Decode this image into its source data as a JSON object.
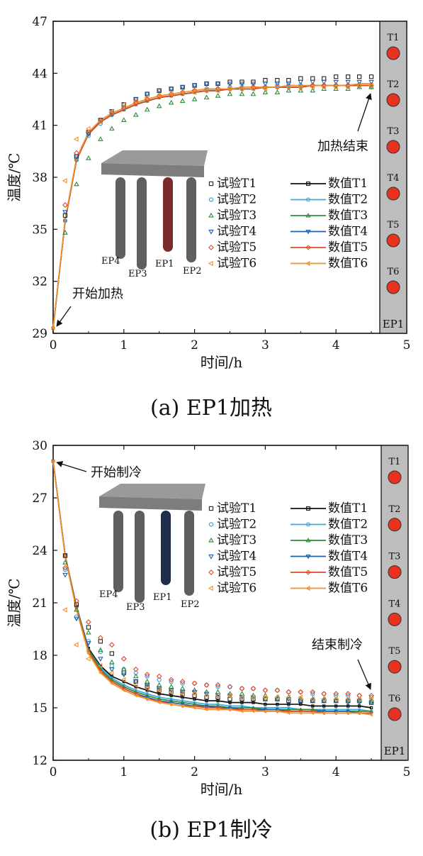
{
  "chart_data": [
    {
      "type": "line",
      "caption": "(a) EP1加热",
      "xlabel": "时间/h",
      "ylabel": "温度/℃",
      "xlim": [
        0,
        5
      ],
      "ylim": [
        29,
        47
      ],
      "xticks": [
        "0",
        "1",
        "2",
        "3",
        "4",
        "5"
      ],
      "yticks": [
        "29",
        "32",
        "35",
        "38",
        "41",
        "44",
        "47"
      ],
      "legend_position": "center-right",
      "annotations": {
        "start": "开始加热",
        "end": "加热结束"
      },
      "column_labels": [
        "EP4",
        "EP3",
        "EP1",
        "EP2"
      ],
      "highlight_column": "EP1",
      "highlight_color": "#7a2b2b",
      "sensor_panel": {
        "label": "EP1",
        "sensors": [
          "T1",
          "T2",
          "T3",
          "T4",
          "T5",
          "T6"
        ]
      },
      "x": [
        0,
        0.17,
        0.33,
        0.5,
        0.67,
        0.83,
        1.0,
        1.17,
        1.33,
        1.5,
        1.67,
        1.83,
        2.0,
        2.17,
        2.33,
        2.5,
        2.67,
        2.83,
        3.0,
        3.17,
        3.33,
        3.5,
        3.67,
        3.83,
        4.0,
        4.17,
        4.33,
        4.5
      ],
      "series": [
        {
          "name": "试验T1",
          "kind": "test",
          "marker": "square",
          "color": "#222222",
          "values": [
            29.3,
            35.8,
            39.2,
            40.6,
            41.3,
            41.8,
            42.2,
            42.5,
            42.8,
            43.0,
            43.1,
            43.2,
            43.3,
            43.4,
            43.4,
            43.5,
            43.5,
            43.5,
            43.6,
            43.6,
            43.6,
            43.7,
            43.7,
            43.7,
            43.8,
            43.8,
            43.8,
            43.8
          ]
        },
        {
          "name": "试验T2",
          "kind": "test",
          "marker": "circle",
          "color": "#2aa0d8",
          "values": [
            29.3,
            35.5,
            39.0,
            40.4,
            41.1,
            41.6,
            42.0,
            42.3,
            42.5,
            42.7,
            42.8,
            42.9,
            43.0,
            43.1,
            43.1,
            43.2,
            43.2,
            43.2,
            43.2,
            43.3,
            43.3,
            43.3,
            43.3,
            43.3,
            43.3,
            43.3,
            43.3,
            43.2
          ]
        },
        {
          "name": "试验T3",
          "kind": "test",
          "marker": "triangle-up",
          "color": "#2e8b3a",
          "values": [
            29.3,
            34.8,
            37.6,
            39.1,
            40.2,
            40.8,
            41.3,
            41.6,
            41.9,
            42.1,
            42.3,
            42.4,
            42.5,
            42.6,
            42.7,
            42.8,
            42.8,
            42.8,
            42.9,
            42.9,
            43.0,
            43.0,
            43.0,
            43.1,
            43.1,
            43.1,
            43.2,
            43.2
          ]
        },
        {
          "name": "试验T4",
          "kind": "test",
          "marker": "triangle-down",
          "color": "#1f5fa8",
          "values": [
            29.3,
            36.0,
            39.2,
            40.5,
            41.3,
            41.8,
            42.2,
            42.5,
            42.8,
            43.0,
            43.1,
            43.2,
            43.3,
            43.4,
            43.4,
            43.4,
            43.4,
            43.4,
            43.4,
            43.4,
            43.4,
            43.5,
            43.5,
            43.5,
            43.5,
            43.5,
            43.5,
            43.5
          ]
        },
        {
          "name": "试验T5",
          "kind": "test",
          "marker": "diamond",
          "color": "#e04a25",
          "values": [
            29.3,
            36.4,
            39.4,
            40.6,
            41.3,
            41.7,
            42.0,
            42.3,
            42.5,
            42.7,
            42.8,
            42.9,
            43.0,
            43.0,
            43.1,
            43.1,
            43.1,
            43.2,
            43.2,
            43.2,
            43.2,
            43.2,
            43.3,
            43.3,
            43.3,
            43.3,
            43.3,
            43.3
          ]
        },
        {
          "name": "试验T6",
          "kind": "test",
          "marker": "triangle-left",
          "color": "#f0922e",
          "values": [
            29.3,
            37.8,
            40.2,
            40.8,
            41.2,
            41.8,
            42.2,
            42.4,
            42.6,
            42.7,
            42.8,
            42.9,
            42.9,
            43.0,
            43.0,
            43.1,
            43.1,
            43.1,
            43.1,
            43.2,
            43.2,
            43.2,
            43.2,
            43.2,
            43.2,
            43.2,
            43.3,
            43.3
          ]
        },
        {
          "name": "数值T1",
          "kind": "numeric",
          "marker": "square",
          "color": "#111111",
          "values": [
            29.3,
            35.5,
            39.0,
            40.5,
            41.2,
            41.6,
            41.9,
            42.2,
            42.4,
            42.6,
            42.7,
            42.8,
            42.9,
            43.0,
            43.0,
            43.1,
            43.1,
            43.1,
            43.2,
            43.2,
            43.2,
            43.2,
            43.3,
            43.3,
            43.3,
            43.3,
            43.3,
            43.3
          ]
        },
        {
          "name": "数值T2",
          "kind": "numeric",
          "marker": "circle",
          "color": "#39a9de",
          "values": [
            29.3,
            35.5,
            39.0,
            40.5,
            41.2,
            41.6,
            41.9,
            42.2,
            42.4,
            42.6,
            42.7,
            42.8,
            42.9,
            43.0,
            43.0,
            43.1,
            43.1,
            43.1,
            43.2,
            43.2,
            43.2,
            43.2,
            43.3,
            43.3,
            43.3,
            43.3,
            43.3,
            43.3
          ]
        },
        {
          "name": "数值T3",
          "kind": "numeric",
          "marker": "triangle-up",
          "color": "#2e8b3a",
          "values": [
            29.3,
            35.5,
            39.0,
            40.5,
            41.2,
            41.6,
            41.9,
            42.2,
            42.4,
            42.6,
            42.7,
            42.8,
            42.9,
            43.0,
            43.0,
            43.1,
            43.1,
            43.1,
            43.2,
            43.2,
            43.2,
            43.2,
            43.3,
            43.3,
            43.3,
            43.3,
            43.3,
            43.3
          ]
        },
        {
          "name": "数值T4",
          "kind": "numeric",
          "marker": "triangle-down",
          "color": "#1f5fa8",
          "values": [
            29.3,
            35.5,
            39.0,
            40.5,
            41.2,
            41.6,
            41.9,
            42.2,
            42.4,
            42.6,
            42.7,
            42.8,
            42.9,
            43.0,
            43.0,
            43.1,
            43.1,
            43.1,
            43.2,
            43.2,
            43.2,
            43.2,
            43.3,
            43.3,
            43.3,
            43.3,
            43.3,
            43.3
          ]
        },
        {
          "name": "数值T5",
          "kind": "numeric",
          "marker": "diamond",
          "color": "#e04a25",
          "values": [
            29.3,
            35.5,
            39.0,
            40.5,
            41.2,
            41.6,
            41.9,
            42.2,
            42.4,
            42.6,
            42.7,
            42.8,
            42.9,
            43.0,
            43.0,
            43.1,
            43.1,
            43.1,
            43.2,
            43.2,
            43.2,
            43.2,
            43.3,
            43.3,
            43.3,
            43.3,
            43.3,
            43.3
          ]
        },
        {
          "name": "数值T6",
          "kind": "numeric",
          "marker": "triangle-left",
          "color": "#f0922e",
          "values": [
            29.3,
            35.6,
            39.1,
            40.6,
            41.3,
            41.7,
            42.0,
            42.3,
            42.5,
            42.7,
            42.8,
            42.9,
            43.0,
            43.1,
            43.1,
            43.1,
            43.2,
            43.2,
            43.2,
            43.2,
            43.3,
            43.3,
            43.3,
            43.3,
            43.3,
            43.3,
            43.4,
            43.4
          ]
        }
      ]
    },
    {
      "type": "line",
      "caption": "(b) EP1制冷",
      "xlabel": "时间/h",
      "ylabel": "温度/℃",
      "xlim": [
        0,
        5
      ],
      "ylim": [
        12,
        30
      ],
      "xticks": [
        "0",
        "1",
        "2",
        "3",
        "4",
        "5"
      ],
      "yticks": [
        "12",
        "15",
        "18",
        "21",
        "24",
        "27",
        "30"
      ],
      "legend_position": "top-right",
      "annotations": {
        "start": "开始制冷",
        "end": "结束制冷"
      },
      "column_labels": [
        "EP4",
        "EP3",
        "EP1",
        "EP2"
      ],
      "highlight_column": "EP1",
      "highlight_color": "#1e2d4a",
      "sensor_panel": {
        "label": "EP1",
        "sensors": [
          "T1",
          "T2",
          "T3",
          "T4",
          "T5",
          "T6"
        ]
      },
      "x": [
        0,
        0.17,
        0.33,
        0.5,
        0.67,
        0.83,
        1.0,
        1.17,
        1.33,
        1.5,
        1.67,
        1.83,
        2.0,
        2.17,
        2.33,
        2.5,
        2.67,
        2.83,
        3.0,
        3.17,
        3.33,
        3.5,
        3.67,
        3.83,
        4.0,
        4.17,
        4.33,
        4.5
      ],
      "series": [
        {
          "name": "试验T1",
          "kind": "test",
          "marker": "square",
          "color": "#222222",
          "values": [
            29.1,
            23.7,
            20.9,
            19.6,
            18.8,
            18.1,
            17.0,
            16.5,
            16.2,
            16.0,
            15.9,
            15.8,
            15.7,
            15.6,
            15.6,
            15.5,
            15.5,
            15.5,
            15.5,
            15.5,
            15.4,
            15.4,
            15.4,
            15.4,
            15.4,
            15.4,
            15.4,
            15.3
          ]
        },
        {
          "name": "试验T2",
          "kind": "test",
          "marker": "circle",
          "color": "#2aa0d8",
          "values": [
            29.1,
            22.9,
            20.2,
            18.8,
            18.2,
            17.4,
            17.2,
            17.0,
            16.8,
            16.6,
            16.5,
            16.4,
            16.4,
            16.3,
            16.2,
            16.2,
            16.1,
            16.1,
            16.0,
            16.0,
            15.9,
            15.9,
            15.8,
            15.8,
            15.7,
            15.7,
            15.7,
            15.6
          ]
        },
        {
          "name": "试验T3",
          "kind": "test",
          "marker": "triangle-up",
          "color": "#2e8b3a",
          "values": [
            29.1,
            23.3,
            20.6,
            19.3,
            18.3,
            17.6,
            17.2,
            16.8,
            16.5,
            16.3,
            16.2,
            16.1,
            16.0,
            15.9,
            15.9,
            15.8,
            15.8,
            15.7,
            15.7,
            15.6,
            15.6,
            15.5,
            15.5,
            15.5,
            15.4,
            15.4,
            15.4,
            15.4
          ]
        },
        {
          "name": "试验T4",
          "kind": "test",
          "marker": "triangle-down",
          "color": "#1f5fa8",
          "values": [
            29.1,
            22.6,
            20.1,
            18.7,
            17.8,
            17.2,
            16.9,
            16.5,
            16.3,
            16.1,
            16.0,
            15.9,
            15.9,
            15.8,
            15.7,
            15.7,
            15.6,
            15.6,
            15.5,
            15.5,
            15.5,
            15.4,
            15.4,
            15.4,
            15.4,
            15.3,
            15.3,
            15.3
          ]
        },
        {
          "name": "试验T5",
          "kind": "test",
          "marker": "diamond",
          "color": "#e04a25",
          "values": [
            29.1,
            23.0,
            21.1,
            19.9,
            19.0,
            18.6,
            17.8,
            17.2,
            16.9,
            16.8,
            16.6,
            16.5,
            16.4,
            16.3,
            16.3,
            16.2,
            16.1,
            16.1,
            16.0,
            16.0,
            15.9,
            15.9,
            15.9,
            15.8,
            15.8,
            15.8,
            15.7,
            15.7
          ]
        },
        {
          "name": "试验T6",
          "kind": "test",
          "marker": "triangle-left",
          "color": "#f0922e",
          "values": [
            29.1,
            20.6,
            18.6,
            17.8,
            17.4,
            17.0,
            16.6,
            16.3,
            16.1,
            16.0,
            15.9,
            15.8,
            15.8,
            15.7,
            15.7,
            15.7,
            15.6,
            15.6,
            15.6,
            15.6,
            15.6,
            15.6,
            15.5,
            15.5,
            15.5,
            15.5,
            15.5,
            15.5
          ]
        },
        {
          "name": "数值T1",
          "kind": "numeric",
          "marker": "square",
          "color": "#111111",
          "values": [
            29.1,
            23.7,
            20.8,
            18.4,
            17.4,
            16.8,
            16.5,
            16.2,
            16.0,
            15.8,
            15.7,
            15.6,
            15.5,
            15.4,
            15.4,
            15.3,
            15.3,
            15.3,
            15.2,
            15.2,
            15.2,
            15.2,
            15.1,
            15.1,
            15.1,
            15.1,
            15.1,
            15.0
          ]
        },
        {
          "name": "数值T2",
          "kind": "numeric",
          "marker": "circle",
          "color": "#39a9de",
          "values": [
            29.1,
            23.7,
            20.8,
            18.3,
            17.3,
            16.7,
            16.3,
            16.0,
            15.8,
            15.6,
            15.5,
            15.4,
            15.3,
            15.2,
            15.2,
            15.1,
            15.1,
            15.0,
            15.0,
            15.0,
            15.0,
            14.9,
            14.9,
            14.9,
            14.9,
            14.9,
            14.9,
            14.8
          ]
        },
        {
          "name": "数值T3",
          "kind": "numeric",
          "marker": "triangle-up",
          "color": "#2e8b3a",
          "values": [
            29.1,
            23.7,
            20.8,
            18.3,
            17.2,
            16.6,
            16.2,
            15.9,
            15.7,
            15.5,
            15.4,
            15.3,
            15.2,
            15.1,
            15.1,
            15.0,
            15.0,
            15.0,
            14.9,
            14.9,
            14.9,
            14.9,
            14.9,
            14.8,
            14.8,
            14.8,
            14.8,
            14.8
          ]
        },
        {
          "name": "数值T4",
          "kind": "numeric",
          "marker": "triangle-down",
          "color": "#1f5fa8",
          "values": [
            29.1,
            23.7,
            20.7,
            18.2,
            17.1,
            16.5,
            16.1,
            15.8,
            15.6,
            15.4,
            15.3,
            15.2,
            15.1,
            15.1,
            15.0,
            15.0,
            14.9,
            14.9,
            14.9,
            14.9,
            14.8,
            14.8,
            14.8,
            14.8,
            14.8,
            14.8,
            14.7,
            14.7
          ]
        },
        {
          "name": "数值T5",
          "kind": "numeric",
          "marker": "diamond",
          "color": "#e04a25",
          "values": [
            29.1,
            23.7,
            20.7,
            18.2,
            17.1,
            16.5,
            16.1,
            15.8,
            15.5,
            15.4,
            15.2,
            15.1,
            15.1,
            15.0,
            15.0,
            14.9,
            14.9,
            14.9,
            14.8,
            14.8,
            14.8,
            14.8,
            14.8,
            14.7,
            14.7,
            14.7,
            14.7,
            14.7
          ]
        },
        {
          "name": "数值T6",
          "kind": "numeric",
          "marker": "triangle-left",
          "color": "#f0922e",
          "values": [
            29.1,
            23.6,
            20.6,
            18.1,
            17.0,
            16.4,
            16.0,
            15.7,
            15.5,
            15.3,
            15.2,
            15.1,
            15.0,
            14.9,
            14.9,
            14.9,
            14.8,
            14.8,
            14.8,
            14.8,
            14.7,
            14.7,
            14.7,
            14.7,
            14.7,
            14.7,
            14.7,
            14.6
          ]
        }
      ]
    }
  ]
}
